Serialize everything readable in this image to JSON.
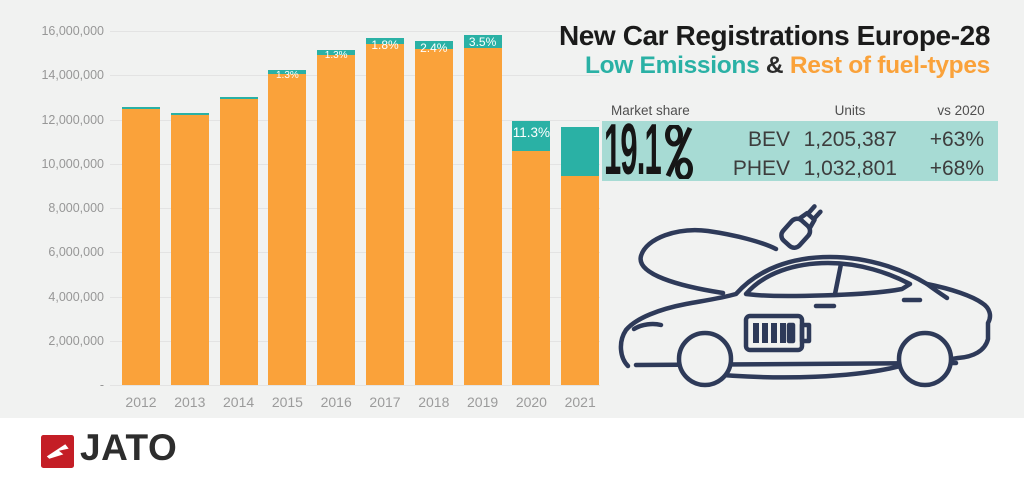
{
  "title": {
    "main": "New Car Registrations Europe-28",
    "sub_teal": "Low Emissions",
    "sub_amp": " & ",
    "sub_orange": "Rest of fuel-types"
  },
  "chart_data": {
    "type": "bar",
    "stacked": true,
    "title": "New Car Registrations Europe-28 — Low Emissions & Rest of fuel-types",
    "categories": [
      "2012",
      "2013",
      "2014",
      "2015",
      "2016",
      "2017",
      "2018",
      "2019",
      "2020",
      "2021"
    ],
    "totals": [
      12550000,
      12300000,
      13020000,
      14240000,
      15130000,
      15700000,
      15560000,
      15800000,
      11930000,
      11660000
    ],
    "low_emission_share_pct": [
      0.3,
      0.4,
      0.7,
      1.3,
      1.3,
      1.8,
      2.4,
      3.5,
      11.3,
      19.1
    ],
    "bar_labels": [
      "",
      "",
      "",
      "1.3%",
      "1.3%",
      "1.8%",
      "2.4%",
      "3.5%",
      "11.3%",
      ""
    ],
    "series_names": [
      "Low Emissions",
      "Rest of fuel-types"
    ],
    "ymax": 16000000,
    "ytick_labels": [
      "16,000,000",
      "14,000,000",
      "12,000,000",
      "10,000,000",
      "8,000,000",
      "6,000,000",
      "4,000,000",
      "2,000,000",
      "-"
    ],
    "grid": true,
    "legend_position": "none",
    "colors": {
      "low_emissions": "#2ab1a5",
      "rest_of_fuel": "#faa23a"
    }
  },
  "panel": {
    "market_share_label": "Market share",
    "market_share_value": "19.1",
    "units_header": "Units",
    "vs_header": "vs 2020",
    "rows": [
      {
        "name": "BEV",
        "units": "1,205,387",
        "vs": "+63%"
      },
      {
        "name": "PHEV",
        "units": "1,032,801",
        "vs": "+68%"
      }
    ],
    "panel_color": "#a7dbd4"
  },
  "footer": {
    "brand": "JATO",
    "brand_color": "#c41e26"
  },
  "colors": {
    "background": "#f1f2f1",
    "teal": "#2ab1a5",
    "orange": "#faa23a",
    "car_outline": "#2e3a59"
  }
}
